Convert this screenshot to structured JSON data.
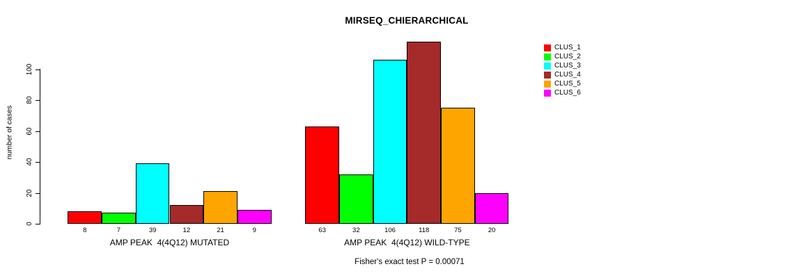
{
  "chart_data": {
    "type": "bar",
    "title": "MIRSEQ_CHIERARCHICAL",
    "ylabel": "number of cases",
    "xlabel": "",
    "ylim": [
      0,
      120
    ],
    "yticks": [
      0,
      20,
      40,
      60,
      80,
      100
    ],
    "grid": false,
    "legend_position": "right",
    "clusters": [
      "CLUS_1",
      "CLUS_2",
      "CLUS_3",
      "CLUS_4",
      "CLUS_5",
      "CLUS_6"
    ],
    "colors": [
      "#FF0000",
      "#00FF00",
      "#00FFFF",
      "#A52A2A",
      "#FFA500",
      "#FF00FF"
    ],
    "groups": [
      {
        "label": "AMP PEAK  4(4Q12) MUTATED",
        "values": [
          8,
          7,
          39,
          12,
          21,
          9
        ]
      },
      {
        "label": "AMP PEAK  4(4Q12) WILD-TYPE",
        "values": [
          63,
          32,
          106,
          118,
          75,
          20
        ]
      }
    ],
    "annotation": "Fisher's exact test P = 0.00071"
  }
}
